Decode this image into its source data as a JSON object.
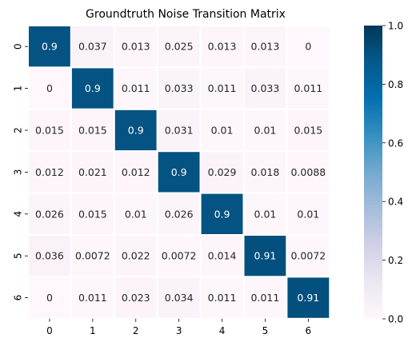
{
  "chart_data": {
    "type": "heatmap",
    "title": "Groundtruth Noise Transition Matrix",
    "xlabel": "",
    "ylabel": "",
    "x_tick_labels": [
      "0",
      "1",
      "2",
      "3",
      "4",
      "5",
      "6"
    ],
    "y_tick_labels": [
      "0",
      "1",
      "2",
      "3",
      "4",
      "5",
      "6"
    ],
    "values": [
      [
        0.9,
        0.037,
        0.013,
        0.025,
        0.013,
        0.013,
        0
      ],
      [
        0,
        0.9,
        0.011,
        0.033,
        0.011,
        0.033,
        0.011
      ],
      [
        0.015,
        0.015,
        0.9,
        0.031,
        0.01,
        0.01,
        0.015
      ],
      [
        0.012,
        0.021,
        0.012,
        0.9,
        0.029,
        0.018,
        0.0088
      ],
      [
        0.026,
        0.015,
        0.01,
        0.026,
        0.9,
        0.01,
        0.01
      ],
      [
        0.036,
        0.0072,
        0.022,
        0.0072,
        0.014,
        0.91,
        0.0072
      ],
      [
        0,
        0.011,
        0.023,
        0.034,
        0.011,
        0.011,
        0.91
      ]
    ],
    "cell_labels": [
      [
        "0.9",
        "0.037",
        "0.013",
        "0.025",
        "0.013",
        "0.013",
        "0"
      ],
      [
        "0",
        "0.9",
        "0.011",
        "0.033",
        "0.011",
        "0.033",
        "0.011"
      ],
      [
        "0.015",
        "0.015",
        "0.9",
        "0.031",
        "0.01",
        "0.01",
        "0.015"
      ],
      [
        "0.012",
        "0.021",
        "0.012",
        "0.9",
        "0.029",
        "0.018",
        "0.0088"
      ],
      [
        "0.026",
        "0.015",
        "0.01",
        "0.026",
        "0.9",
        "0.01",
        "0.01"
      ],
      [
        "0.036",
        "0.0072",
        "0.022",
        "0.0072",
        "0.014",
        "0.91",
        "0.0072"
      ],
      [
        "0",
        "0.011",
        "0.023",
        "0.034",
        "0.011",
        "0.011",
        "0.91"
      ]
    ],
    "colorbar": {
      "min": 0.0,
      "max": 1.0,
      "tick_values": [
        0.0,
        0.2,
        0.4,
        0.6,
        0.8,
        1.0
      ],
      "tick_labels": [
        "0.0",
        "0.2",
        "0.4",
        "0.6",
        "0.8",
        "1.0"
      ]
    },
    "colormap": "PuBu",
    "grid_line_color": "#ffffff"
  }
}
